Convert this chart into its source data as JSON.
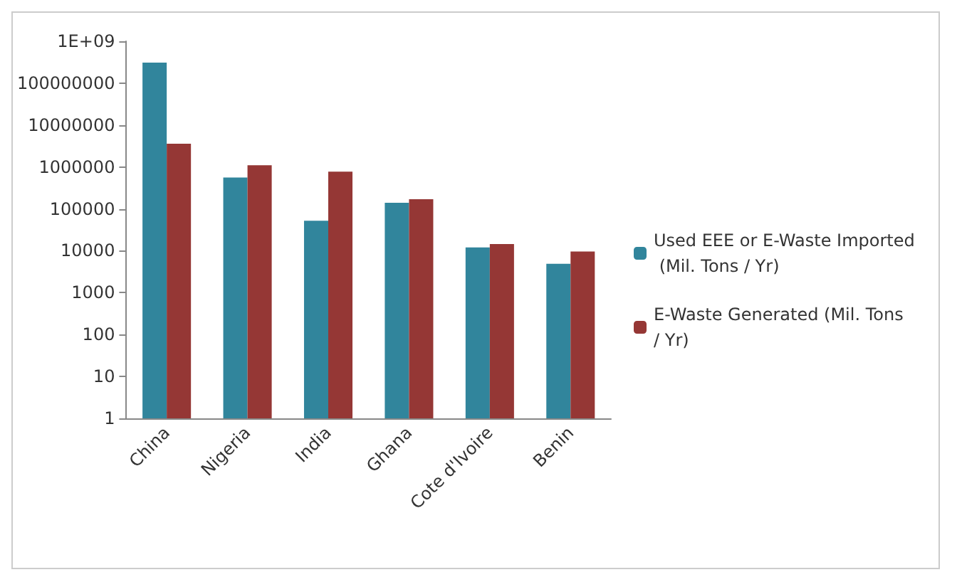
{
  "chart_data": {
    "type": "bar",
    "categories": [
      "China",
      "Nigeria",
      "India",
      "Ghana",
      "Cote d'Ivoire",
      "Benin"
    ],
    "series": [
      {
        "name": "Used EEE or E-Waste Imported (Mil. Tons / Yr)",
        "color": "#31859c",
        "values": [
          310000000,
          560000,
          52000,
          140000,
          12000,
          4900
        ]
      },
      {
        "name": "E-Waste Generated (Mil. Tons / Yr)",
        "color": "#953735",
        "values": [
          3600000,
          1100000,
          770000,
          170000,
          14500,
          9600
        ]
      }
    ],
    "log": true,
    "ylim": [
      1,
      1000000000
    ],
    "yticks": [
      1,
      10,
      100,
      1000,
      10000,
      100000,
      1000000,
      10000000,
      100000000,
      {
        "value": 1000000000,
        "label": "1E+09"
      }
    ],
    "grid": false,
    "legend": "right"
  }
}
